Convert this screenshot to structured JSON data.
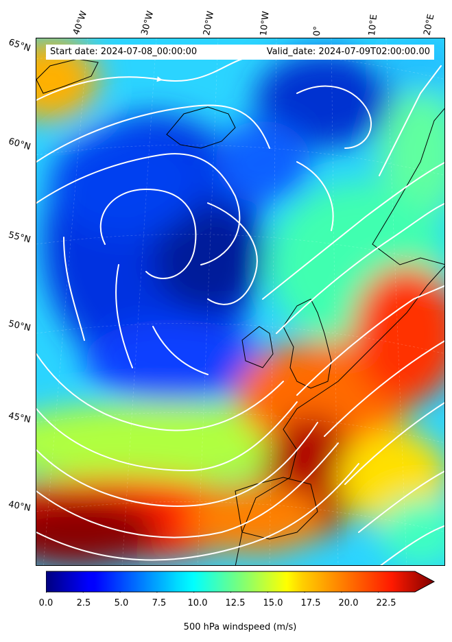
{
  "map": {
    "start_date": "Start date: 2024-07-08_00:00:00",
    "valid_date": "Valid_date: 2024-07-09T02:00:00.00",
    "longitude_labels": [
      "40°W",
      "30°W",
      "20°W",
      "10°W",
      "0°",
      "10°E",
      "20°E"
    ],
    "latitude_labels": [
      "65°N",
      "60°N",
      "55°N",
      "50°N",
      "45°N",
      "40°N"
    ],
    "field": "500 hPa windspeed",
    "colormap": "jet",
    "streamline_color": "#ffffff",
    "coastline_color": "#000000"
  },
  "colorbar": {
    "label": "500 hPa windspeed (m/s)",
    "ticks": [
      "0.0",
      "2.5",
      "5.0",
      "7.5",
      "10.0",
      "12.5",
      "15.0",
      "17.5",
      "20.0",
      "22.5"
    ],
    "min": 0,
    "max": 25,
    "extend": "max"
  }
}
